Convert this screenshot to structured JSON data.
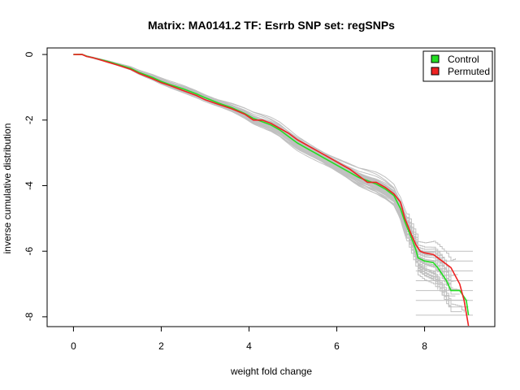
{
  "chart_data": {
    "type": "line",
    "title": "Matrix: MA0141.2 TF: Esrrb SNP set: regSNPs",
    "xlabel": "weight fold change",
    "ylabel": "inverse cumulative distribution",
    "xlim": [
      -0.6,
      9.6
    ],
    "ylim": [
      -8.3,
      0.2
    ],
    "xticks": [
      0,
      2,
      4,
      6,
      8
    ],
    "yticks": [
      0,
      -2,
      -4,
      -6,
      -8
    ],
    "grid": false,
    "legend_position": "top-right",
    "colors": {
      "control": "#22dd22",
      "permuted": "#ee2222",
      "background": "#c0c0c0"
    },
    "series": [
      {
        "name": "Control",
        "color": "#22dd22",
        "x": [
          0,
          0.2,
          0.3,
          0.45,
          0.6,
          0.8,
          1.0,
          1.3,
          1.5,
          1.8,
          2.0,
          2.2,
          2.5,
          2.8,
          3.0,
          3.3,
          3.6,
          3.9,
          4.1,
          4.3,
          4.5,
          4.7,
          4.9,
          5.1,
          5.3,
          5.5,
          5.7,
          5.9,
          6.1,
          6.3,
          6.5,
          6.7,
          6.9,
          7.1,
          7.3,
          7.45,
          7.55,
          7.7,
          7.8,
          7.85,
          8.0,
          8.2,
          8.3,
          8.5,
          8.6,
          8.8,
          8.95,
          9.0
        ],
        "y": [
          0,
          0,
          -0.05,
          -0.1,
          -0.15,
          -0.22,
          -0.3,
          -0.42,
          -0.55,
          -0.7,
          -0.82,
          -0.92,
          -1.05,
          -1.2,
          -1.32,
          -1.48,
          -1.62,
          -1.8,
          -1.95,
          -2.05,
          -2.15,
          -2.3,
          -2.5,
          -2.7,
          -2.85,
          -3.0,
          -3.15,
          -3.3,
          -3.45,
          -3.6,
          -3.75,
          -3.85,
          -3.95,
          -4.1,
          -4.3,
          -4.7,
          -5.1,
          -5.6,
          -5.95,
          -6.2,
          -6.3,
          -6.35,
          -6.5,
          -6.9,
          -7.2,
          -7.2,
          -7.5,
          -7.95
        ]
      },
      {
        "name": "Permuted",
        "color": "#ee2222",
        "x": [
          0,
          0.2,
          0.3,
          0.45,
          0.6,
          0.8,
          1.0,
          1.3,
          1.5,
          1.8,
          2.0,
          2.2,
          2.5,
          2.8,
          3.0,
          3.3,
          3.6,
          3.9,
          4.1,
          4.3,
          4.5,
          4.7,
          4.9,
          5.1,
          5.3,
          5.5,
          5.7,
          5.9,
          6.1,
          6.3,
          6.5,
          6.7,
          6.9,
          7.1,
          7.3,
          7.45,
          7.55,
          7.7,
          7.8,
          7.9,
          8.0,
          8.2,
          8.4,
          8.6,
          8.8,
          8.9,
          9.0
        ],
        "y": [
          0,
          0,
          -0.06,
          -0.1,
          -0.16,
          -0.24,
          -0.32,
          -0.45,
          -0.58,
          -0.74,
          -0.86,
          -0.95,
          -1.1,
          -1.25,
          -1.38,
          -1.52,
          -1.65,
          -1.82,
          -2.0,
          -2.0,
          -2.1,
          -2.25,
          -2.4,
          -2.6,
          -2.75,
          -2.9,
          -3.05,
          -3.2,
          -3.35,
          -3.5,
          -3.7,
          -3.9,
          -3.9,
          -4.05,
          -4.25,
          -4.5,
          -5.0,
          -5.5,
          -5.8,
          -6.0,
          -6.05,
          -6.1,
          -6.3,
          -6.5,
          -7.0,
          -7.5,
          -8.3
        ]
      }
    ]
  },
  "legend": {
    "items": [
      {
        "label": "Control",
        "color": "#22dd22"
      },
      {
        "label": "Permuted",
        "color": "#ee2222"
      }
    ]
  }
}
